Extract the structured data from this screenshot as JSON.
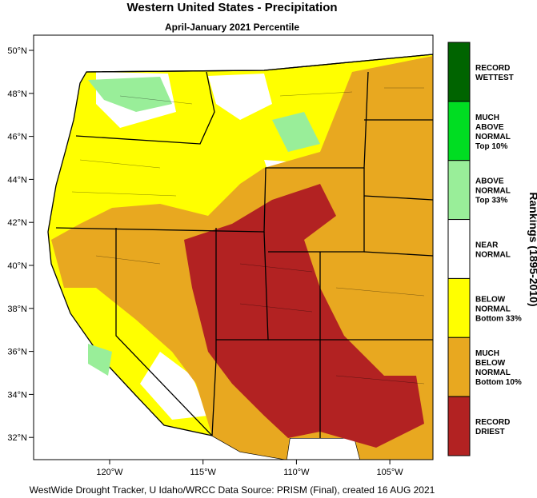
{
  "title": "Western United States - Precipitation",
  "subtitle": "April-January 2021 Percentile",
  "latitude_labels": [
    "50°N",
    "48°N",
    "46°N",
    "44°N",
    "42°N",
    "40°N",
    "38°N",
    "36°N",
    "34°N",
    "32°N"
  ],
  "longitude_labels": [
    "120°W",
    "115°W",
    "110°W",
    "105°W"
  ],
  "legend": {
    "title": "Rankings (1895-2010)",
    "classes": [
      {
        "label": [
          "RECORD",
          "WETTEST"
        ],
        "color": "#006400"
      },
      {
        "label": [
          "MUCH",
          "ABOVE",
          "NORMAL",
          "Top 10%"
        ],
        "color": "#00dd22"
      },
      {
        "label": [
          "ABOVE",
          "NORMAL",
          "Top 33%"
        ],
        "color": "#99ee99"
      },
      {
        "label": [
          "NEAR",
          "NORMAL"
        ],
        "color": "#ffffff"
      },
      {
        "label": [
          "BELOW",
          "NORMAL",
          "Bottom 33%"
        ],
        "color": "#ffff00"
      },
      {
        "label": [
          "MUCH",
          "BELOW",
          "NORMAL",
          "Bottom 10%"
        ],
        "color": "#e8a820"
      },
      {
        "label": [
          "RECORD",
          "DRIEST"
        ],
        "color": "#b22222"
      }
    ]
  },
  "footer": "WestWide Drought Tracker, U Idaho/WRCC Data Source: PRISM (Final), created 16 AUG 2021"
}
